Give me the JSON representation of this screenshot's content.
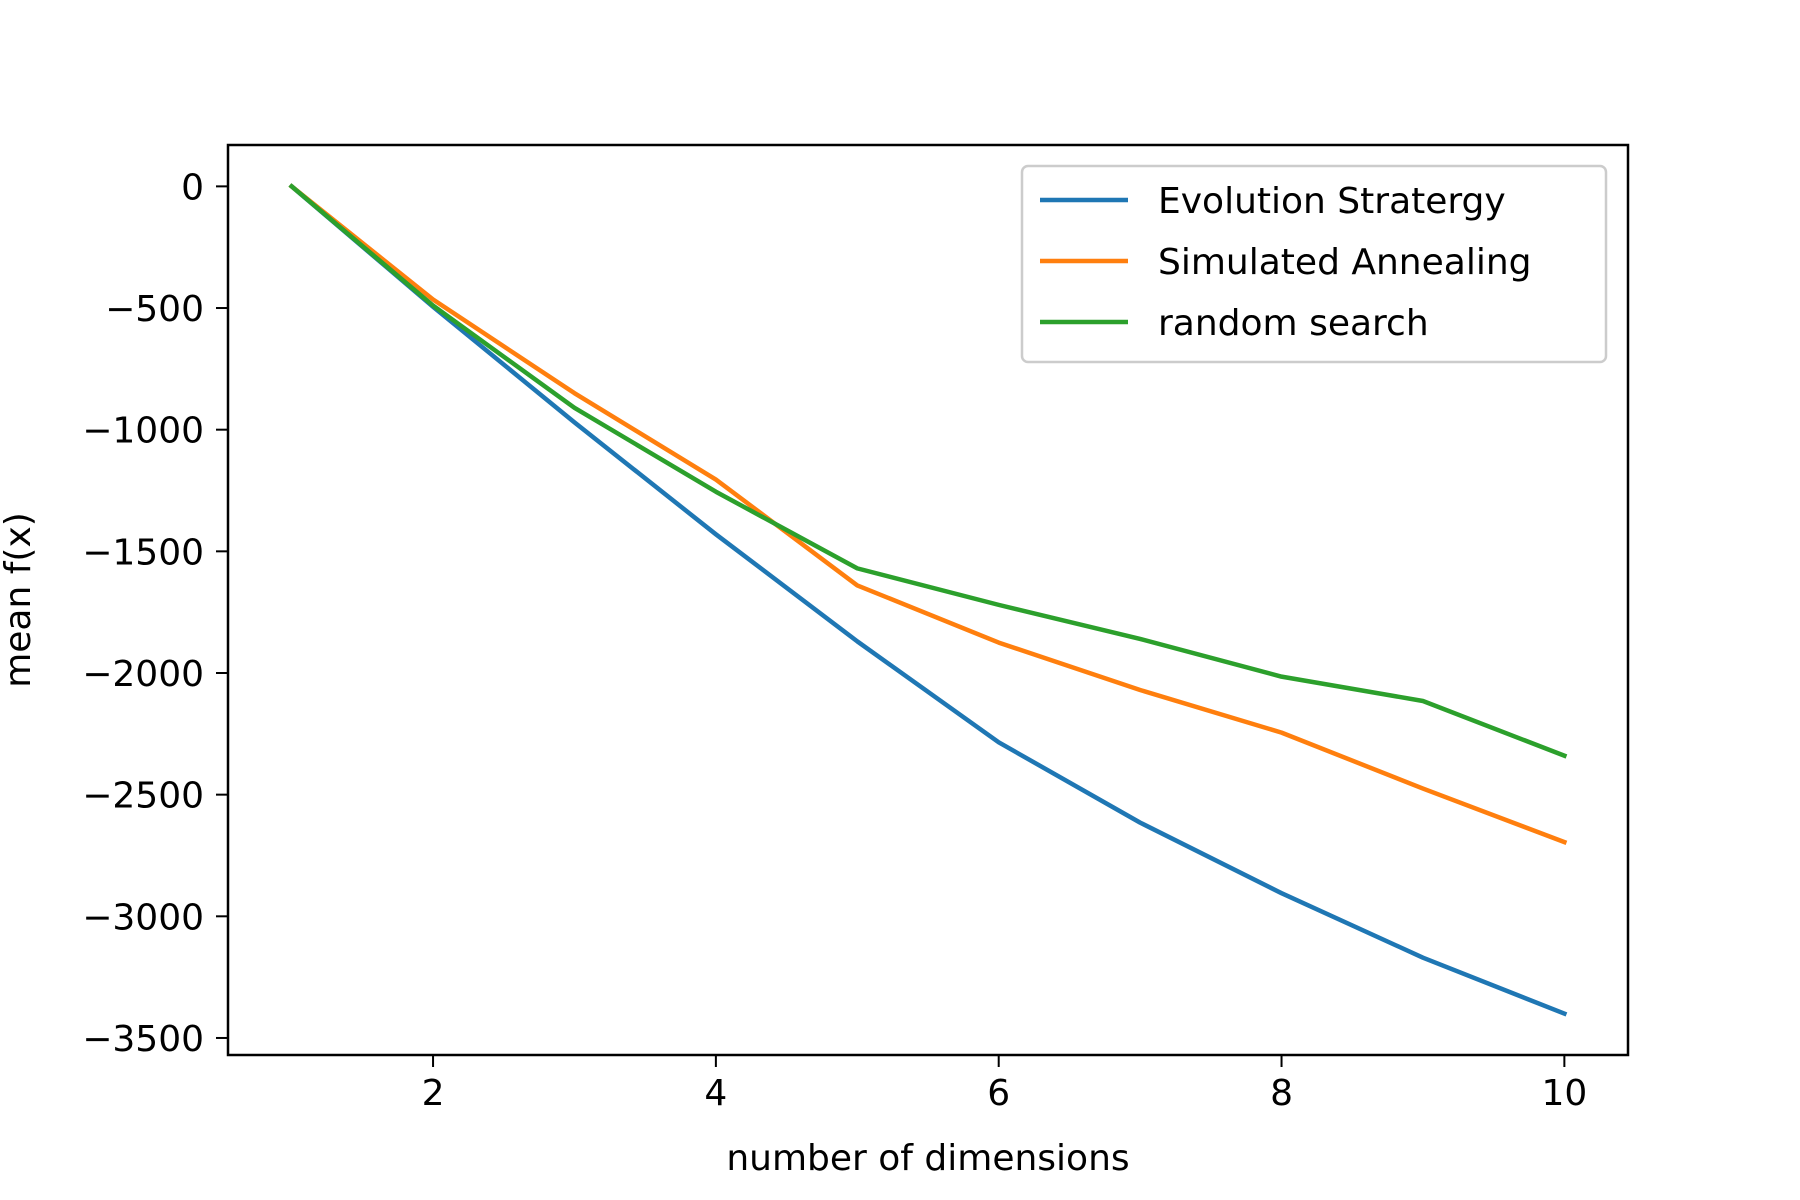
{
  "chart_data": {
    "type": "line",
    "title": "",
    "xlabel": "number of dimensions",
    "ylabel": "mean f(x)",
    "xlim": [
      0.55,
      10.45
    ],
    "ylim": [
      -3570,
      170
    ],
    "xticks": [
      2,
      4,
      6,
      8,
      10
    ],
    "yticks": [
      0,
      -500,
      -1000,
      -1500,
      -2000,
      -2500,
      -3000,
      -3500
    ],
    "xtick_labels": [
      "2",
      "4",
      "6",
      "8",
      "10"
    ],
    "ytick_labels": [
      "0",
      "−500",
      "−1000",
      "−1500",
      "−2000",
      "−2500",
      "−3000",
      "−3500"
    ],
    "grid": false,
    "legend_position": "top-right",
    "x": [
      1,
      2,
      3,
      4,
      5,
      6,
      7,
      8,
      9,
      10
    ],
    "series": [
      {
        "name": "Evolution Stratergy",
        "color": "#1f77b4",
        "values": [
          0,
          -495,
          -970,
          -1430,
          -1870,
          -2285,
          -2615,
          -2905,
          -3170,
          -3400
        ]
      },
      {
        "name": "Simulated Annealing",
        "color": "#ff7f0e",
        "values": [
          0,
          -465,
          -850,
          -1205,
          -1640,
          -1875,
          -2070,
          -2245,
          -2475,
          -2695
        ]
      },
      {
        "name": "random search",
        "color": "#2ca02c",
        "values": [
          0,
          -490,
          -910,
          -1255,
          -1570,
          -1720,
          -1860,
          -2015,
          -2115,
          -2340
        ]
      }
    ]
  }
}
